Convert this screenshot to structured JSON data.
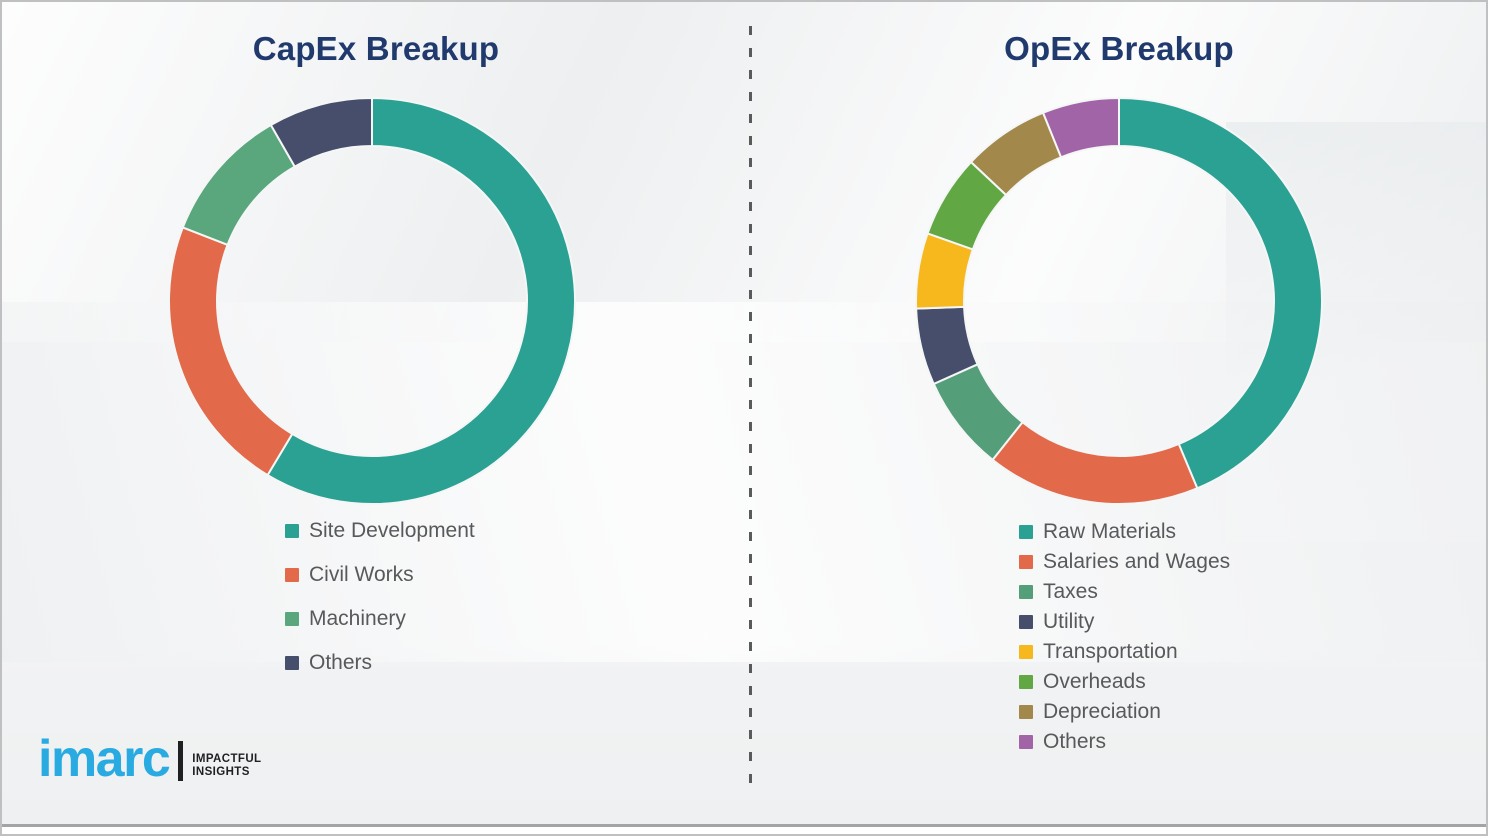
{
  "page": {
    "background_color": "#f2f3f4",
    "divider_style": "vertical-dashed",
    "divider_color": "#595a5c",
    "bottom_rule_color": "#a3a4a6"
  },
  "logo": {
    "brand": "imarc",
    "tagline_line1": "IMPACTFUL",
    "tagline_line2": "INSIGHTS",
    "brand_color": "#29abe2",
    "text_color": "#1f2022"
  },
  "chart_data": [
    {
      "type": "pie",
      "variant": "donut",
      "title": "CapEx Breakup",
      "title_color": "#203a6e",
      "legend_position": "below-left",
      "start_angle_deg": 0,
      "direction": "clockwise",
      "unit": "%",
      "labels": [
        "Site Development",
        "Civil Works",
        "Machinery",
        "Others"
      ],
      "values": [
        58.6,
        22.3,
        10.8,
        8.3
      ],
      "colors": [
        "#2aa193",
        "#e2694a",
        "#5aa67d",
        "#464e6b"
      ]
    },
    {
      "type": "pie",
      "variant": "donut",
      "title": "OpEx Breakup",
      "title_color": "#203a6e",
      "legend_position": "below-left",
      "start_angle_deg": 0,
      "direction": "clockwise",
      "unit": "%",
      "labels": [
        "Raw Materials",
        "Salaries and Wages",
        "Taxes",
        "Utility",
        "Transportation",
        "Overheads",
        "Depreciation",
        "Others"
      ],
      "values": [
        43.7,
        17.0,
        7.6,
        6.1,
        6.0,
        6.6,
        6.9,
        6.1
      ],
      "colors": [
        "#2aa193",
        "#e2694a",
        "#549e7a",
        "#464e6b",
        "#f6b81d",
        "#61a844",
        "#a2884a",
        "#a164a6"
      ]
    }
  ]
}
